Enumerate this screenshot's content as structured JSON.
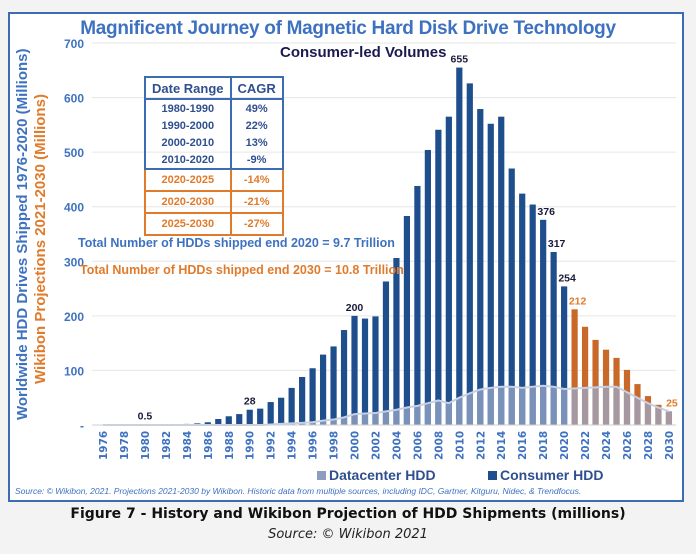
{
  "caption": "Figure 7 - History and Wikibon Projection of HDD Shipments (millions)",
  "caption_source": "Source: © Wikibon 2021",
  "colors": {
    "consumer": "#1f4e8c",
    "projection": "#c8692a",
    "datacenter": "#9aa8c8",
    "accent_blue": "#3e72c0",
    "accent_orange": "#e07b2c"
  },
  "chart_data": {
    "type": "bar",
    "title": "Magnificent Journey of Magnetic Hard Disk Drive Technology",
    "subtitle": "Consumer-led Volumes",
    "ylabel": "Worldwide HDD Drives Shipped 1976-2020 (Millions)",
    "ylabel2": "Wikibon Projections 2021-2030 (Millions)",
    "ylim": [
      0,
      700
    ],
    "yticks": [
      "-",
      "100",
      "200",
      "300",
      "400",
      "500",
      "600",
      "700"
    ],
    "grid": true,
    "legend_position": "bottom",
    "x": [
      1976,
      1977,
      1978,
      1979,
      1980,
      1981,
      1982,
      1983,
      1984,
      1985,
      1986,
      1987,
      1988,
      1989,
      1990,
      1991,
      1992,
      1993,
      1994,
      1995,
      1996,
      1997,
      1998,
      1999,
      2000,
      2001,
      2002,
      2003,
      2004,
      2005,
      2006,
      2007,
      2008,
      2009,
      2010,
      2011,
      2012,
      2013,
      2014,
      2015,
      2016,
      2017,
      2018,
      2019,
      2020,
      2021,
      2022,
      2023,
      2024,
      2025,
      2026,
      2027,
      2028,
      2029,
      2030
    ],
    "xtick_labels": [
      "1976",
      "1978",
      "1980",
      "1982",
      "1984",
      "1986",
      "1988",
      "1990",
      "1992",
      "1994",
      "1996",
      "1998",
      "2000",
      "2002",
      "2004",
      "2006",
      "2008",
      "2010",
      "2012",
      "2014",
      "2016",
      "2018",
      "2020",
      "2022",
      "2024",
      "2026",
      "2028",
      "2030"
    ],
    "series": [
      {
        "name": "Consumer HDD",
        "values": [
          0.1,
          0.2,
          0.3,
          0.4,
          0.5,
          0.6,
          0.8,
          1,
          2,
          3,
          5,
          11,
          16,
          20,
          28,
          30,
          42,
          50,
          68,
          88,
          104,
          129,
          144,
          174,
          200,
          195,
          199,
          263,
          306,
          383,
          438,
          504,
          541,
          565,
          655,
          626,
          579,
          552,
          565,
          470,
          424,
          404,
          376,
          317,
          254,
          212,
          180,
          156,
          138,
          123,
          101,
          75,
          53,
          37,
          25
        ]
      },
      {
        "name": "Datacenter HDD",
        "values": [
          0,
          0,
          0,
          0,
          0,
          0,
          0,
          0,
          0,
          0,
          0,
          0,
          0,
          0,
          0,
          0,
          1,
          2,
          3,
          4,
          5,
          8,
          10,
          14,
          20,
          21,
          22,
          25,
          28,
          32,
          35,
          40,
          45,
          40,
          50,
          58,
          65,
          68,
          70,
          70,
          68,
          70,
          72,
          70,
          66,
          67,
          68,
          69,
          70,
          70,
          60,
          50,
          40,
          32,
          25
        ]
      }
    ],
    "projection_start": 2021,
    "data_labels": [
      {
        "year": 1980,
        "text": "0.5"
      },
      {
        "year": 1990,
        "text": "28"
      },
      {
        "year": 2000,
        "text": "200"
      },
      {
        "year": 2010,
        "text": "655"
      },
      {
        "year": 2018,
        "text": "376"
      },
      {
        "year": 2019,
        "text": "317"
      },
      {
        "year": 2020,
        "text": "254"
      },
      {
        "year": 2021,
        "text": "212"
      },
      {
        "year": 2030,
        "text": "25"
      }
    ],
    "cagr_table": {
      "headers": [
        "Date Range",
        "CAGR"
      ],
      "historic": [
        [
          "1980-1990",
          "49%"
        ],
        [
          "1990-2000",
          "22%"
        ],
        [
          "2000-2010",
          "13%"
        ],
        [
          "2010-2020",
          "-9%"
        ]
      ],
      "projected": [
        [
          "2020-2025",
          "-14%"
        ],
        [
          "2020-2030",
          "-21%"
        ],
        [
          "2025-2030",
          "-27%"
        ]
      ]
    },
    "annotations": {
      "total_2020": "Total Number of HDDs shipped end 2020 = 9.7 Trillion",
      "total_2030": "Total Number of HDDs shipped end 2030 = 10.8 Trillion"
    },
    "legend": [
      "Datacenter HDD",
      "Consumer HDD"
    ],
    "source_note": "Source: © Wikibon, 2021. Projections 2021-2030 by Wikibon. Historic data from multiple sources, including IDC, Gartner, Kitguru, Nidec, & Trendfocus."
  }
}
